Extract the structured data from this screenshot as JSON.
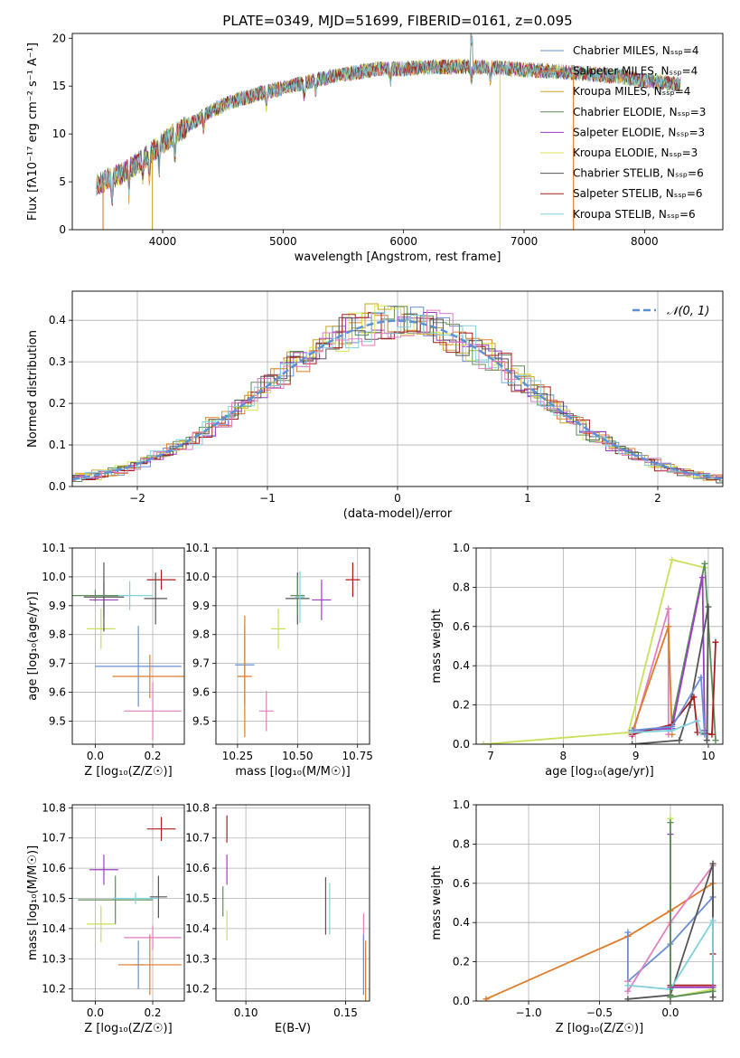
{
  "palette": [
    "#6a8fd6",
    "#e07b28",
    "#c9a227",
    "#5b8f5b",
    "#9b3fc2",
    "#d8e34f",
    "#555555",
    "#a81c1c",
    "#7fd1de",
    "#e07fbf",
    "#c8e05a"
  ],
  "chart_data": [
    {
      "id": "spectrum",
      "type": "line",
      "title": "PLATE=0349, MJD=51699, FIBERID=0161, z=0.095",
      "xlabel": "wavelength [Angstrom, rest frame]",
      "ylabel": "Flux [fλ10⁻¹⁷ erg cm⁻² s⁻¹ A⁻¹]",
      "xlim": [
        3250,
        8650
      ],
      "ylim": [
        0,
        20.5
      ],
      "xticks": [
        4000,
        5000,
        6000,
        7000,
        8000
      ],
      "yticks": [
        0,
        5,
        10,
        15,
        20
      ],
      "grid": false,
      "legend_position": "top-right",
      "legend": [
        "Chabrier MILES, Nₛₛₚ=4",
        "Salpeter MILES, Nₛₛₚ=4",
        "Kroupa MILES, Nₛₛₚ=4",
        "Chabrier ELODIE, Nₛₛₚ=3",
        "Salpeter ELODIE, Nₛₛₚ=3",
        "Kroupa ELODIE, Nₛₛₚ=3",
        "Chabrier STELIB, Nₛₛₚ=6",
        "Salpeter STELIB, Nₛₛₚ=6",
        "Kroupa STELIB, Nₛₛₚ=6"
      ],
      "legend_colors": [
        "#6a8fd6",
        "#e07b28",
        "#c9a227",
        "#5b8f5b",
        "#9b3fc2",
        "#d8e34f",
        "#555555",
        "#a81c1c",
        "#7fd1de"
      ],
      "continuum": [
        [
          3450,
          4.7
        ],
        [
          3550,
          5.3
        ],
        [
          3650,
          5.8
        ],
        [
          3800,
          7.0
        ],
        [
          3950,
          8.5
        ],
        [
          4050,
          9.6
        ],
        [
          4200,
          10.8
        ],
        [
          4400,
          12.4
        ],
        [
          4600,
          13.5
        ],
        [
          4800,
          14.2
        ],
        [
          5000,
          14.8
        ],
        [
          5200,
          15.4
        ],
        [
          5400,
          16.0
        ],
        [
          5600,
          16.4
        ],
        [
          5800,
          16.8
        ],
        [
          6000,
          16.8
        ],
        [
          6200,
          17.0
        ],
        [
          6400,
          17.0
        ],
        [
          6600,
          17.0
        ],
        [
          6800,
          16.9
        ],
        [
          7000,
          16.7
        ],
        [
          7200,
          16.6
        ],
        [
          7400,
          16.4
        ],
        [
          7600,
          16.2
        ],
        [
          7800,
          16.0
        ],
        [
          8000,
          15.6
        ],
        [
          8200,
          15.3
        ],
        [
          8300,
          15.2
        ]
      ]
    },
    {
      "id": "residuals",
      "type": "line",
      "xlabel": "(data-model)/error",
      "ylabel": "Normed distribution",
      "xlim": [
        -2.5,
        2.5
      ],
      "ylim": [
        0,
        0.47
      ],
      "xticks": [
        -2,
        -1,
        0,
        1,
        2
      ],
      "yticks": [
        0.0,
        0.1,
        0.2,
        0.3,
        0.4
      ],
      "grid": true,
      "legend_position": "top-right",
      "legend": [
        "𝒩(0, 1)"
      ],
      "legend_colors": [
        "#5b8fd6"
      ]
    },
    {
      "id": "z-age",
      "type": "scatter",
      "xlabel": "Z [log₁₀(Z/Z☉)]",
      "ylabel": "age  [log₁₀(age/yr)]",
      "xlim": [
        -0.08,
        0.31
      ],
      "ylim": [
        9.42,
        10.1
      ],
      "xticks": [
        0.0,
        0.2
      ],
      "yticks": [
        9.5,
        9.6,
        9.7,
        9.8,
        9.9,
        10.0,
        10.1
      ],
      "grid": true,
      "points": [
        {
          "x": 0.15,
          "y": 9.69,
          "xerr": 0.15,
          "yerr": 0.14,
          "color": "#6a8fd6"
        },
        {
          "x": 0.19,
          "y": 9.655,
          "xerr": 0.13,
          "yerr": 0.075,
          "color": "#e07b28"
        },
        {
          "x": 0.2,
          "y": 9.535,
          "xerr": 0.1,
          "yerr": 0.1,
          "color": "#e07fbf"
        },
        {
          "x": 0.23,
          "y": 9.99,
          "xerr": 0.05,
          "yerr": 0.035,
          "color": "#a81c1c"
        },
        {
          "x": 0.21,
          "y": 9.925,
          "xerr": 0.04,
          "yerr": 0.09,
          "color": "#555555"
        },
        {
          "x": 0.02,
          "y": 9.82,
          "xerr": 0.05,
          "yerr": 0.07,
          "color": "#c8e05a"
        },
        {
          "x": 0.03,
          "y": 9.92,
          "xerr": 0.05,
          "yerr": 0.06,
          "color": "#9b3fc2"
        },
        {
          "x": 0.03,
          "y": 9.93,
          "xerr": 0.07,
          "yerr": 0.12,
          "color": "#555555"
        },
        {
          "x": 0.12,
          "y": 9.935,
          "xerr": 0.08,
          "yerr": 0.05,
          "color": "#7fd1de"
        },
        {
          "x": 0.0,
          "y": 9.935,
          "xerr": 0.08,
          "yerr": 0.02,
          "color": "#5b8f5b"
        }
      ]
    },
    {
      "id": "mass-age",
      "type": "scatter",
      "xlabel": "mass [log₁₀(M/M☉)]",
      "ylabel": "",
      "xlim": [
        10.16,
        10.8
      ],
      "ylim": [
        9.42,
        10.1
      ],
      "xticks": [
        10.25,
        10.5,
        10.75
      ],
      "yticks": [
        9.5,
        9.6,
        9.7,
        9.8,
        9.9,
        10.0,
        10.1
      ],
      "grid": true,
      "points": [
        {
          "x": 10.28,
          "y": 9.695,
          "xerr": 0.04,
          "yerr": 0.14,
          "color": "#6a8fd6"
        },
        {
          "x": 10.28,
          "y": 9.655,
          "xerr": 0.03,
          "yerr": 0.21,
          "color": "#e07b28"
        },
        {
          "x": 10.37,
          "y": 9.535,
          "xerr": 0.03,
          "yerr": 0.07,
          "color": "#e07fbf"
        },
        {
          "x": 10.42,
          "y": 9.82,
          "xerr": 0.03,
          "yerr": 0.07,
          "color": "#c8e05a"
        },
        {
          "x": 10.5,
          "y": 9.925,
          "xerr": 0.05,
          "yerr": 0.09,
          "color": "#555555"
        },
        {
          "x": 10.5,
          "y": 9.935,
          "xerr": 0.03,
          "yerr": 0.07,
          "color": "#5b8f5b"
        },
        {
          "x": 10.51,
          "y": 9.93,
          "xerr": 0.02,
          "yerr": 0.09,
          "color": "#7fd1de"
        },
        {
          "x": 10.6,
          "y": 9.92,
          "xerr": 0.04,
          "yerr": 0.07,
          "color": "#9b3fc2"
        },
        {
          "x": 10.73,
          "y": 9.99,
          "xerr": 0.03,
          "yerr": 0.06,
          "color": "#a81c1c"
        }
      ]
    },
    {
      "id": "age-weight",
      "type": "line",
      "xlabel": "age  [log₁₀(age/yr)]",
      "ylabel": "mass weight",
      "xlim": [
        6.8,
        10.2
      ],
      "ylim": [
        0,
        1.0
      ],
      "xticks": [
        7,
        8,
        9,
        10
      ],
      "yticks": [
        0.0,
        0.2,
        0.4,
        0.6,
        0.8,
        1.0
      ],
      "grid": true,
      "series": [
        {
          "color": "#c8e05a",
          "x": [
            6.9,
            8.9,
            9.5,
            9.95
          ],
          "y": [
            0.0,
            0.06,
            0.94,
            0.9
          ]
        },
        {
          "color": "#e07fbf",
          "x": [
            8.95,
            9.45,
            9.45
          ],
          "y": [
            0.04,
            0.69,
            0.05
          ]
        },
        {
          "color": "#e07b28",
          "x": [
            8.95,
            9.45,
            9.5
          ],
          "y": [
            0.06,
            0.6,
            0.05
          ]
        },
        {
          "color": "#5b8f5b",
          "x": [
            8.95,
            9.48,
            9.95,
            10.1
          ],
          "y": [
            0.07,
            0.08,
            0.92,
            0.02
          ]
        },
        {
          "color": "#9b3fc2",
          "x": [
            8.95,
            9.5,
            9.92,
            9.95
          ],
          "y": [
            0.07,
            0.08,
            0.85,
            0.07
          ]
        },
        {
          "color": "#555555",
          "x": [
            8.95,
            9.6,
            9.75,
            10.0,
            9.98
          ],
          "y": [
            0.0,
            0.02,
            0.2,
            0.7,
            0.02
          ]
        },
        {
          "color": "#a81c1c",
          "x": [
            8.95,
            9.5,
            9.8,
            9.85,
            10.05,
            10.1
          ],
          "y": [
            0.05,
            0.1,
            0.24,
            0.06,
            0.05,
            0.52
          ]
        },
        {
          "color": "#6a8fd6",
          "x": [
            8.95,
            9.5,
            9.9,
            9.95
          ],
          "y": [
            0.07,
            0.09,
            0.34,
            0.05
          ]
        },
        {
          "color": "#7fd1de",
          "x": [
            8.95,
            9.5,
            9.85,
            9.9
          ],
          "y": [
            0.06,
            0.07,
            0.12,
            0.06
          ]
        }
      ]
    },
    {
      "id": "z-mass",
      "type": "scatter",
      "xlabel": "Z [log₁₀(Z/Z☉)]",
      "ylabel": "mass [log₁₀(M/M☉)]",
      "xlim": [
        -0.08,
        0.31
      ],
      "ylim": [
        10.16,
        10.81
      ],
      "xticks": [
        0.0,
        0.2
      ],
      "yticks": [
        10.2,
        10.3,
        10.4,
        10.5,
        10.6,
        10.7,
        10.8
      ],
      "grid": true,
      "points": [
        {
          "x": 0.23,
          "y": 10.73,
          "xerr": 0.05,
          "yerr": 0.04,
          "color": "#a81c1c"
        },
        {
          "x": 0.03,
          "y": 10.595,
          "xerr": 0.05,
          "yerr": 0.05,
          "color": "#9b3fc2"
        },
        {
          "x": 0.02,
          "y": 10.415,
          "xerr": 0.05,
          "yerr": 0.06,
          "color": "#c8e05a"
        },
        {
          "x": 0.07,
          "y": 10.495,
          "xerr": 0.13,
          "yerr": 0.08,
          "color": "#5b8f5b"
        },
        {
          "x": 0.22,
          "y": 10.505,
          "xerr": 0.03,
          "yerr": 0.07,
          "color": "#555555"
        },
        {
          "x": 0.14,
          "y": 10.5,
          "xerr": 0.08,
          "yerr": 0.02,
          "color": "#7fd1de"
        },
        {
          "x": 0.2,
          "y": 10.37,
          "xerr": 0.1,
          "yerr": 0.04,
          "color": "#e07fbf"
        },
        {
          "x": 0.15,
          "y": 10.28,
          "xerr": 0.02,
          "yerr": 0.08,
          "color": "#6a8fd6"
        },
        {
          "x": 0.19,
          "y": 10.28,
          "xerr": 0.11,
          "yerr": 0.1,
          "color": "#e07b28"
        }
      ]
    },
    {
      "id": "ebv-mass",
      "type": "scatter",
      "xlabel": "E(B-V)",
      "ylabel": "",
      "xlim": [
        0.085,
        0.162
      ],
      "ylim": [
        10.16,
        10.81
      ],
      "xticks": [
        0.1,
        0.15
      ],
      "yticks": [
        10.2,
        10.3,
        10.4,
        10.5,
        10.6,
        10.7,
        10.8
      ],
      "grid": true,
      "points": [
        {
          "x": 0.0905,
          "y": 10.73,
          "xerr": 0,
          "yerr": 0.045,
          "color": "#a81c1c"
        },
        {
          "x": 0.0905,
          "y": 10.595,
          "xerr": 0,
          "yerr": 0.05,
          "color": "#9b3fc2"
        },
        {
          "x": 0.0885,
          "y": 10.49,
          "xerr": 0,
          "yerr": 0.05,
          "color": "#5b8f5b"
        },
        {
          "x": 0.0905,
          "y": 10.41,
          "xerr": 0,
          "yerr": 0.05,
          "color": "#c8e05a"
        },
        {
          "x": 0.14,
          "y": 10.475,
          "xerr": 0,
          "yerr": 0.095,
          "color": "#555555"
        },
        {
          "x": 0.142,
          "y": 10.465,
          "xerr": 0,
          "yerr": 0.085,
          "color": "#7fd1de"
        },
        {
          "x": 0.159,
          "y": 10.37,
          "xerr": 0,
          "yerr": 0.08,
          "color": "#e07fbf"
        },
        {
          "x": 0.159,
          "y": 10.28,
          "xerr": 0,
          "yerr": 0.1,
          "color": "#6a8fd6"
        },
        {
          "x": 0.16,
          "y": 10.26,
          "xerr": 0,
          "yerr": 0.1,
          "color": "#e07b28"
        }
      ]
    },
    {
      "id": "z-weight",
      "type": "line",
      "xlabel": "Z [log₁₀(Z/Z☉)]",
      "ylabel": "mass weight",
      "xlim": [
        -1.37,
        0.37
      ],
      "ylim": [
        0,
        1.0
      ],
      "xticks": [
        -1.0,
        -0.5,
        0.0
      ],
      "yticks": [
        0.0,
        0.2,
        0.4,
        0.6,
        0.8,
        1.0
      ],
      "grid": true,
      "series": [
        {
          "color": "#e07b28",
          "x": [
            -1.3,
            -0.3,
            0.0,
            0.3,
            0.3
          ],
          "y": [
            0.01,
            0.33,
            0.46,
            0.6,
            0.05
          ]
        },
        {
          "color": "#6a8fd6",
          "x": [
            -0.3,
            -0.3,
            0.0,
            0.3
          ],
          "y": [
            0.35,
            0.1,
            0.29,
            0.53
          ]
        },
        {
          "color": "#e07fbf",
          "x": [
            -0.3,
            -0.3,
            0.0,
            0.3
          ],
          "y": [
            0.1,
            0.05,
            0.4,
            0.69
          ]
        },
        {
          "color": "#555555",
          "x": [
            -0.3,
            0.0,
            0.3,
            0.3
          ],
          "y": [
            0.01,
            0.03,
            0.7,
            0.02
          ]
        },
        {
          "color": "#a81c1c",
          "x": [
            0.0,
            0.0,
            0.3,
            0.3
          ],
          "y": [
            0.02,
            0.08,
            0.08,
            0.24
          ]
        },
        {
          "color": "#7fd1de",
          "x": [
            -0.3,
            0.0,
            0.3,
            0.3
          ],
          "y": [
            0.08,
            0.06,
            0.41,
            0.07
          ]
        },
        {
          "color": "#c8e05a",
          "x": [
            0.0,
            0.0,
            0.3
          ],
          "y": [
            0.93,
            0.02,
            0.06
          ]
        },
        {
          "color": "#9b3fc2",
          "x": [
            0.0,
            0.0,
            0.3
          ],
          "y": [
            0.85,
            0.07,
            0.07
          ]
        },
        {
          "color": "#5b8f5b",
          "x": [
            0.0,
            0.0,
            0.3
          ],
          "y": [
            0.91,
            0.02,
            0.05
          ]
        }
      ]
    }
  ]
}
